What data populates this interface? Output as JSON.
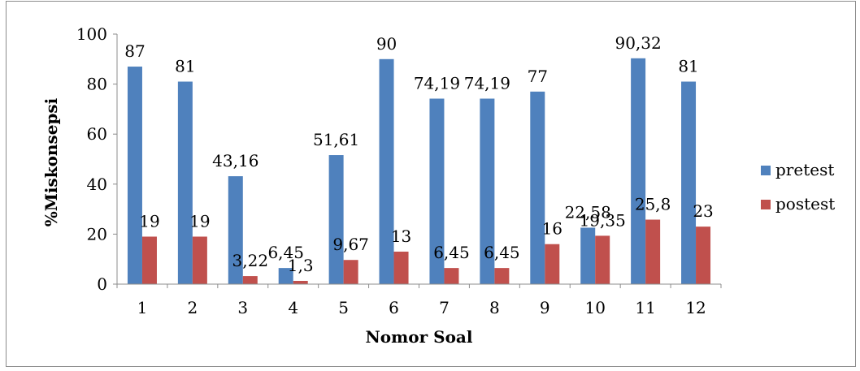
{
  "chart_data": {
    "type": "bar",
    "categories": [
      "1",
      "2",
      "3",
      "4",
      "5",
      "6",
      "7",
      "8",
      "9",
      "10",
      "11",
      "12"
    ],
    "series": [
      {
        "name": "pretest",
        "color": "#4f81bd",
        "values": [
          87,
          81,
          43.16,
          6.45,
          51.61,
          90,
          74.19,
          74.19,
          77,
          22.58,
          90.32,
          81
        ],
        "labels": [
          "87",
          "81",
          "43,16",
          "6,45",
          "51,61",
          "90",
          "74,19",
          "74,19",
          "77",
          "22,58",
          "90,32",
          "81"
        ]
      },
      {
        "name": "postest",
        "color": "#c0504d",
        "values": [
          19,
          19,
          3.22,
          1.3,
          9.67,
          13,
          6.45,
          6.45,
          16,
          19.35,
          25.8,
          23
        ],
        "labels": [
          "19",
          "19",
          "3,22",
          "1,3",
          "9,67",
          "13",
          "6,45",
          "6,45",
          "16",
          "19,35",
          "25,8",
          "23"
        ]
      }
    ],
    "xlabel": "Nomor Soal",
    "ylabel": "%Miskonsepsi",
    "ylim": [
      0,
      100
    ],
    "yticks": [
      0,
      20,
      40,
      60,
      80,
      100
    ],
    "grid": false,
    "legend_position": "right"
  }
}
